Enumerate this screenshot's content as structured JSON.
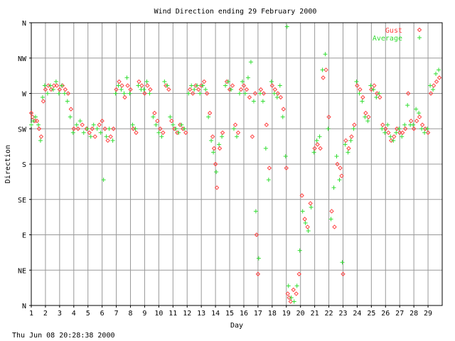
{
  "chart_data": {
    "type": "scatter",
    "title": "Wind Direction ending 29 February 2000",
    "xlabel": "Day",
    "ylabel": "Direction",
    "footer": "Thu Jun 08 20:28:38 2000",
    "xlim": [
      1,
      30
    ],
    "ylim": [
      0,
      360
    ],
    "grid": true,
    "legend_position": "top-right",
    "x_ticks": [
      "1",
      "2",
      "3",
      "4",
      "5",
      "6",
      "7",
      "8",
      "9",
      "10",
      "11",
      "12",
      "13",
      "14",
      "15",
      "16",
      "17",
      "18",
      "19",
      "20",
      "21",
      "22",
      "23",
      "24",
      "25",
      "26",
      "27",
      "28",
      "29"
    ],
    "y_ticks": [
      {
        "label": "N",
        "value": 0
      },
      {
        "label": "NE",
        "value": 45
      },
      {
        "label": "E",
        "value": 90
      },
      {
        "label": "SE",
        "value": 135
      },
      {
        "label": "S",
        "value": 180
      },
      {
        "label": "SW",
        "value": 225
      },
      {
        "label": "W",
        "value": 270
      },
      {
        "label": "NW",
        "value": 315
      },
      {
        "label": "N",
        "value": 360
      }
    ],
    "series": [
      {
        "name": "Gust",
        "color": "#ff4040",
        "marker": "diamond",
        "points": [
          [
            1.0,
            245
          ],
          [
            1.1,
            240
          ],
          [
            1.25,
            235
          ],
          [
            1.4,
            235
          ],
          [
            1.55,
            225
          ],
          [
            1.7,
            215
          ],
          [
            1.85,
            260
          ],
          [
            2.0,
            275
          ],
          [
            2.2,
            280
          ],
          [
            2.4,
            275
          ],
          [
            2.6,
            280
          ],
          [
            2.8,
            280
          ],
          [
            3.0,
            275
          ],
          [
            3.2,
            280
          ],
          [
            3.4,
            275
          ],
          [
            3.6,
            270
          ],
          [
            3.8,
            250
          ],
          [
            4.0,
            225
          ],
          [
            4.3,
            225
          ],
          [
            4.6,
            230
          ],
          [
            4.9,
            225
          ],
          [
            5.1,
            220
          ],
          [
            5.3,
            225
          ],
          [
            5.5,
            215
          ],
          [
            5.8,
            230
          ],
          [
            6.0,
            235
          ],
          [
            6.2,
            225
          ],
          [
            6.4,
            210
          ],
          [
            6.6,
            215
          ],
          [
            6.8,
            225
          ],
          [
            7.0,
            275
          ],
          [
            7.2,
            285
          ],
          [
            7.4,
            280
          ],
          [
            7.6,
            265
          ],
          [
            7.8,
            280
          ],
          [
            8.0,
            275
          ],
          [
            8.2,
            225
          ],
          [
            8.4,
            220
          ],
          [
            8.6,
            285
          ],
          [
            8.8,
            280
          ],
          [
            9.0,
            270
          ],
          [
            9.2,
            280
          ],
          [
            9.4,
            275
          ],
          [
            9.7,
            245
          ],
          [
            9.9,
            235
          ],
          [
            10.1,
            225
          ],
          [
            10.3,
            220
          ],
          [
            10.5,
            280
          ],
          [
            10.7,
            275
          ],
          [
            10.9,
            235
          ],
          [
            11.1,
            225
          ],
          [
            11.3,
            220
          ],
          [
            11.5,
            230
          ],
          [
            11.7,
            225
          ],
          [
            11.9,
            220
          ],
          [
            12.2,
            275
          ],
          [
            12.4,
            270
          ],
          [
            12.6,
            280
          ],
          [
            12.8,
            275
          ],
          [
            13.0,
            280
          ],
          [
            13.2,
            285
          ],
          [
            13.4,
            270
          ],
          [
            13.6,
            245
          ],
          [
            13.8,
            215
          ],
          [
            13.9,
            200
          ],
          [
            14.0,
            180
          ],
          [
            14.1,
            150
          ],
          [
            14.3,
            200
          ],
          [
            14.5,
            220
          ],
          [
            14.8,
            285
          ],
          [
            15.0,
            275
          ],
          [
            15.2,
            280
          ],
          [
            15.4,
            230
          ],
          [
            15.6,
            220
          ],
          [
            15.8,
            275
          ],
          [
            16.0,
            280
          ],
          [
            16.2,
            275
          ],
          [
            16.4,
            265
          ],
          [
            16.6,
            215
          ],
          [
            16.8,
            270
          ],
          [
            16.9,
            90
          ],
          [
            17.0,
            40
          ],
          [
            17.2,
            275
          ],
          [
            17.4,
            270
          ],
          [
            17.6,
            230
          ],
          [
            17.8,
            175
          ],
          [
            18.0,
            280
          ],
          [
            18.2,
            275
          ],
          [
            18.4,
            270
          ],
          [
            18.6,
            265
          ],
          [
            18.8,
            250
          ],
          [
            19.0,
            175
          ],
          [
            19.1,
            15
          ],
          [
            19.2,
            10
          ],
          [
            19.3,
            5
          ],
          [
            19.5,
            20
          ],
          [
            19.7,
            15
          ],
          [
            19.9,
            40
          ],
          [
            20.1,
            140
          ],
          [
            20.3,
            110
          ],
          [
            20.5,
            100
          ],
          [
            20.7,
            130
          ],
          [
            21.0,
            200
          ],
          [
            21.2,
            205
          ],
          [
            21.4,
            200
          ],
          [
            21.6,
            290
          ],
          [
            21.8,
            300
          ],
          [
            22.0,
            240
          ],
          [
            22.2,
            120
          ],
          [
            22.4,
            100
          ],
          [
            22.6,
            180
          ],
          [
            22.8,
            175
          ],
          [
            22.9,
            165
          ],
          [
            23.0,
            40
          ],
          [
            23.2,
            210
          ],
          [
            23.4,
            200
          ],
          [
            23.6,
            215
          ],
          [
            23.8,
            230
          ],
          [
            24.0,
            280
          ],
          [
            24.2,
            275
          ],
          [
            24.4,
            265
          ],
          [
            24.6,
            245
          ],
          [
            24.8,
            240
          ],
          [
            25.0,
            275
          ],
          [
            25.2,
            280
          ],
          [
            25.4,
            270
          ],
          [
            25.6,
            265
          ],
          [
            25.8,
            230
          ],
          [
            26.0,
            225
          ],
          [
            26.2,
            220
          ],
          [
            26.4,
            210
          ],
          [
            26.6,
            215
          ],
          [
            26.8,
            225
          ],
          [
            27.0,
            220
          ],
          [
            27.2,
            220
          ],
          [
            27.4,
            225
          ],
          [
            27.6,
            270
          ],
          [
            27.8,
            235
          ],
          [
            28.0,
            225
          ],
          [
            28.2,
            235
          ],
          [
            28.4,
            240
          ],
          [
            28.6,
            230
          ],
          [
            28.8,
            225
          ],
          [
            29.0,
            220
          ],
          [
            29.2,
            270
          ],
          [
            29.4,
            280
          ],
          [
            29.6,
            285
          ],
          [
            29.8,
            290
          ]
        ]
      },
      {
        "name": "Average",
        "color": "#33dd33",
        "marker": "plus",
        "points": [
          [
            1.0,
            230
          ],
          [
            1.15,
            235
          ],
          [
            1.3,
            240
          ],
          [
            1.5,
            230
          ],
          [
            1.65,
            210
          ],
          [
            1.8,
            265
          ],
          [
            1.95,
            280
          ],
          [
            2.15,
            270
          ],
          [
            2.35,
            280
          ],
          [
            2.55,
            275
          ],
          [
            2.75,
            285
          ],
          [
            2.95,
            270
          ],
          [
            3.15,
            280
          ],
          [
            3.35,
            270
          ],
          [
            3.55,
            260
          ],
          [
            3.75,
            240
          ],
          [
            3.95,
            220
          ],
          [
            4.2,
            230
          ],
          [
            4.45,
            235
          ],
          [
            4.7,
            220
          ],
          [
            4.95,
            225
          ],
          [
            5.2,
            215
          ],
          [
            5.4,
            230
          ],
          [
            5.65,
            225
          ],
          [
            5.9,
            220
          ],
          [
            6.1,
            160
          ],
          [
            6.3,
            215
          ],
          [
            6.5,
            225
          ],
          [
            6.75,
            210
          ],
          [
            6.95,
            270
          ],
          [
            7.15,
            280
          ],
          [
            7.35,
            275
          ],
          [
            7.55,
            270
          ],
          [
            7.75,
            290
          ],
          [
            7.95,
            270
          ],
          [
            8.15,
            230
          ],
          [
            8.35,
            225
          ],
          [
            8.55,
            280
          ],
          [
            8.75,
            275
          ],
          [
            8.95,
            275
          ],
          [
            9.15,
            285
          ],
          [
            9.35,
            270
          ],
          [
            9.6,
            240
          ],
          [
            9.8,
            230
          ],
          [
            10.0,
            220
          ],
          [
            10.2,
            215
          ],
          [
            10.4,
            285
          ],
          [
            10.6,
            280
          ],
          [
            10.8,
            240
          ],
          [
            11.0,
            230
          ],
          [
            11.2,
            225
          ],
          [
            11.4,
            220
          ],
          [
            11.6,
            230
          ],
          [
            11.8,
            225
          ],
          [
            12.1,
            270
          ],
          [
            12.3,
            280
          ],
          [
            12.5,
            275
          ],
          [
            12.7,
            280
          ],
          [
            12.9,
            270
          ],
          [
            13.1,
            280
          ],
          [
            13.3,
            275
          ],
          [
            13.5,
            240
          ],
          [
            13.7,
            210
          ],
          [
            13.85,
            195
          ],
          [
            14.05,
            170
          ],
          [
            14.25,
            205
          ],
          [
            14.45,
            215
          ],
          [
            14.7,
            280
          ],
          [
            14.9,
            285
          ],
          [
            15.1,
            275
          ],
          [
            15.3,
            225
          ],
          [
            15.5,
            215
          ],
          [
            15.7,
            270
          ],
          [
            15.9,
            285
          ],
          [
            16.1,
            270
          ],
          [
            16.3,
            290
          ],
          [
            16.5,
            310
          ],
          [
            16.7,
            260
          ],
          [
            16.85,
            120
          ],
          [
            17.05,
            60
          ],
          [
            17.15,
            270
          ],
          [
            17.35,
            260
          ],
          [
            17.55,
            200
          ],
          [
            17.75,
            160
          ],
          [
            17.95,
            285
          ],
          [
            18.15,
            270
          ],
          [
            18.35,
            265
          ],
          [
            18.55,
            280
          ],
          [
            18.75,
            240
          ],
          [
            18.95,
            190
          ],
          [
            19.05,
            355
          ],
          [
            19.15,
            25
          ],
          [
            19.35,
            10
          ],
          [
            19.55,
            5
          ],
          [
            19.75,
            25
          ],
          [
            19.95,
            70
          ],
          [
            20.15,
            120
          ],
          [
            20.35,
            105
          ],
          [
            20.55,
            95
          ],
          [
            20.75,
            125
          ],
          [
            20.95,
            195
          ],
          [
            21.15,
            210
          ],
          [
            21.35,
            215
          ],
          [
            21.55,
            300
          ],
          [
            21.75,
            320
          ],
          [
            21.95,
            225
          ],
          [
            22.15,
            110
          ],
          [
            22.35,
            150
          ],
          [
            22.55,
            190
          ],
          [
            22.75,
            160
          ],
          [
            22.95,
            55
          ],
          [
            23.15,
            205
          ],
          [
            23.35,
            195
          ],
          [
            23.55,
            210
          ],
          [
            23.75,
            225
          ],
          [
            23.95,
            285
          ],
          [
            24.15,
            270
          ],
          [
            24.35,
            260
          ],
          [
            24.55,
            240
          ],
          [
            24.75,
            235
          ],
          [
            24.95,
            280
          ],
          [
            25.15,
            275
          ],
          [
            25.35,
            265
          ],
          [
            25.55,
            270
          ],
          [
            25.75,
            225
          ],
          [
            25.95,
            220
          ],
          [
            26.15,
            230
          ],
          [
            26.35,
            215
          ],
          [
            26.55,
            210
          ],
          [
            26.75,
            220
          ],
          [
            26.95,
            225
          ],
          [
            27.15,
            215
          ],
          [
            27.35,
            230
          ],
          [
            27.55,
            255
          ],
          [
            27.75,
            230
          ],
          [
            27.95,
            230
          ],
          [
            28.15,
            250
          ],
          [
            28.35,
            245
          ],
          [
            28.55,
            225
          ],
          [
            28.75,
            220
          ],
          [
            28.95,
            225
          ],
          [
            29.15,
            280
          ],
          [
            29.35,
            275
          ],
          [
            29.55,
            295
          ],
          [
            29.75,
            300
          ]
        ]
      }
    ]
  }
}
